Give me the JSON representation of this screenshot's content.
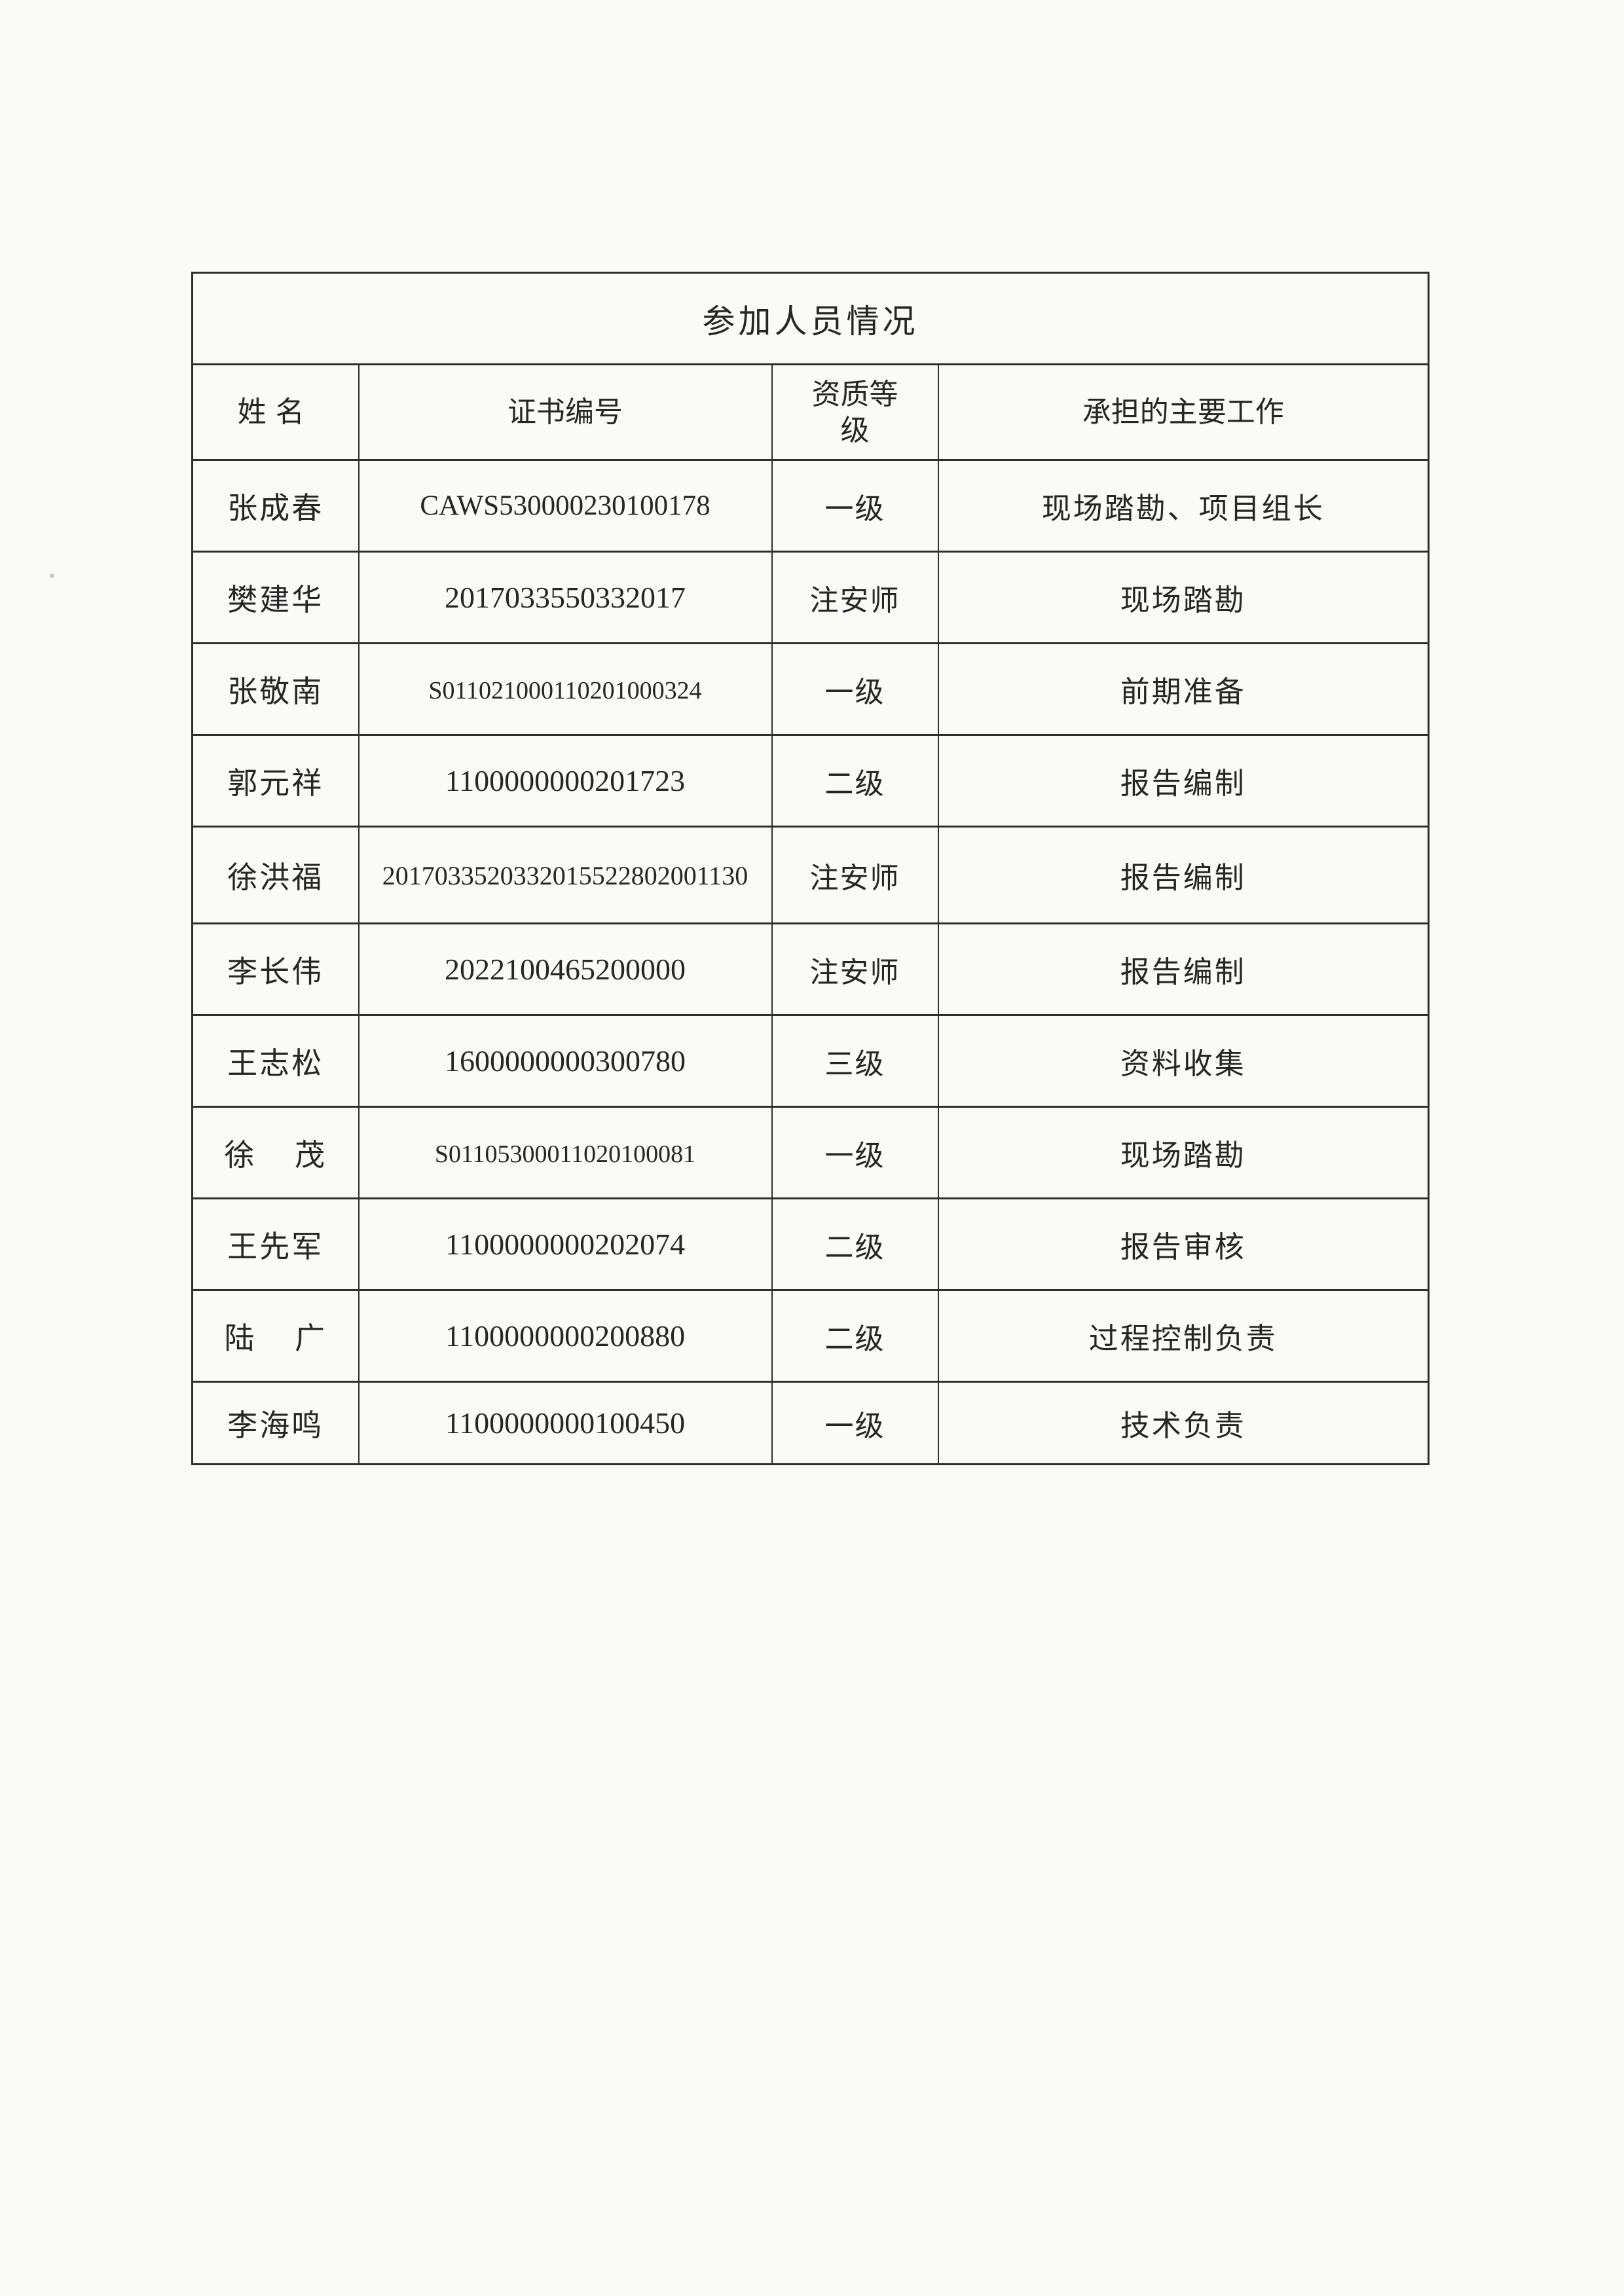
{
  "page": {
    "background_color": "#fafaf8",
    "text_color": "#262626",
    "border_color": "#2e2e2e"
  },
  "table": {
    "title": "参加人员情况",
    "columns": [
      "姓名",
      "证书编号",
      "资质等级",
      "承担的主要工作"
    ],
    "rows": [
      {
        "name": "张成春",
        "cert": "CAWS530000230100178",
        "level": "一级",
        "work": "现场踏勘、项目组长"
      },
      {
        "name": "樊建华",
        "cert": "2017033550332017",
        "level": "注安师",
        "work": "现场踏勘"
      },
      {
        "name": "张敬南",
        "cert": "S011021000110201000324",
        "level": "一级",
        "work": "前期准备"
      },
      {
        "name": "郭元祥",
        "cert": "1100000000201723",
        "level": "二级",
        "work": "报告编制"
      },
      {
        "name": "徐洪福",
        "cert": "2017033520332015522802001130",
        "level": "注安师",
        "work": "报告编制"
      },
      {
        "name": "李长伟",
        "cert": "2022100465200000",
        "level": "注安师",
        "work": "报告编制"
      },
      {
        "name": "王志松",
        "cert": "1600000000300780",
        "level": "三级",
        "work": "资料收集"
      },
      {
        "name": "徐 茂",
        "cert": "S01105300011020100081",
        "level": "一级",
        "work": "现场踏勘"
      },
      {
        "name": "王先军",
        "cert": "1100000000202074",
        "level": "二级",
        "work": "报告审核"
      },
      {
        "name": "陆 广",
        "cert": "1100000000200880",
        "level": "二级",
        "work": "过程控制负责"
      },
      {
        "name": "李海鸣",
        "cert": "1100000000100450",
        "level": "一级",
        "work": "技术负责"
      }
    ]
  }
}
